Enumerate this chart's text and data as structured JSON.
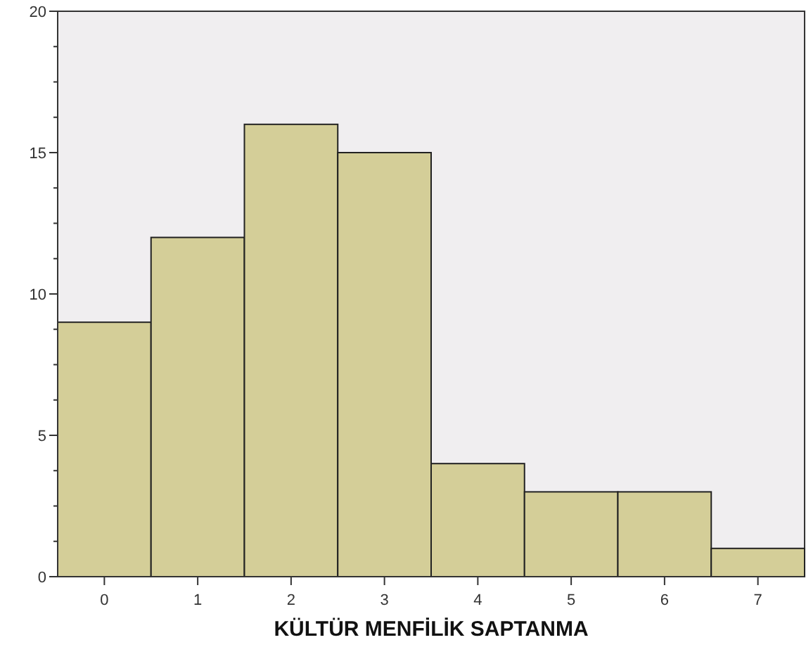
{
  "chart_data": {
    "type": "bar",
    "xlabel": "KÜLTÜR MENFİLİK SAPTANMA",
    "categories": [
      "0",
      "1",
      "2",
      "3",
      "4",
      "5",
      "6",
      "7"
    ],
    "values": [
      9,
      12,
      16,
      15,
      4,
      3,
      3,
      1
    ],
    "color": "#d4ce98",
    "ylim": [
      0,
      20
    ],
    "yticks": [
      0,
      {
        "value": 1.25,
        "label": null
      },
      {
        "value": 2.5,
        "label": null
      },
      {
        "value": 3.75,
        "label": null
      },
      5,
      {
        "value": 6.25,
        "label": null
      },
      {
        "value": 7.5,
        "label": null
      },
      {
        "value": 8.75,
        "label": null
      },
      10,
      {
        "value": 11.25,
        "label": null
      },
      {
        "value": 12.5,
        "label": null
      },
      {
        "value": 13.75,
        "label": null
      },
      15,
      {
        "value": 16.25,
        "label": null
      },
      {
        "value": 17.5,
        "label": null
      },
      {
        "value": 18.75,
        "label": null
      },
      20
    ],
    "grid": false
  }
}
